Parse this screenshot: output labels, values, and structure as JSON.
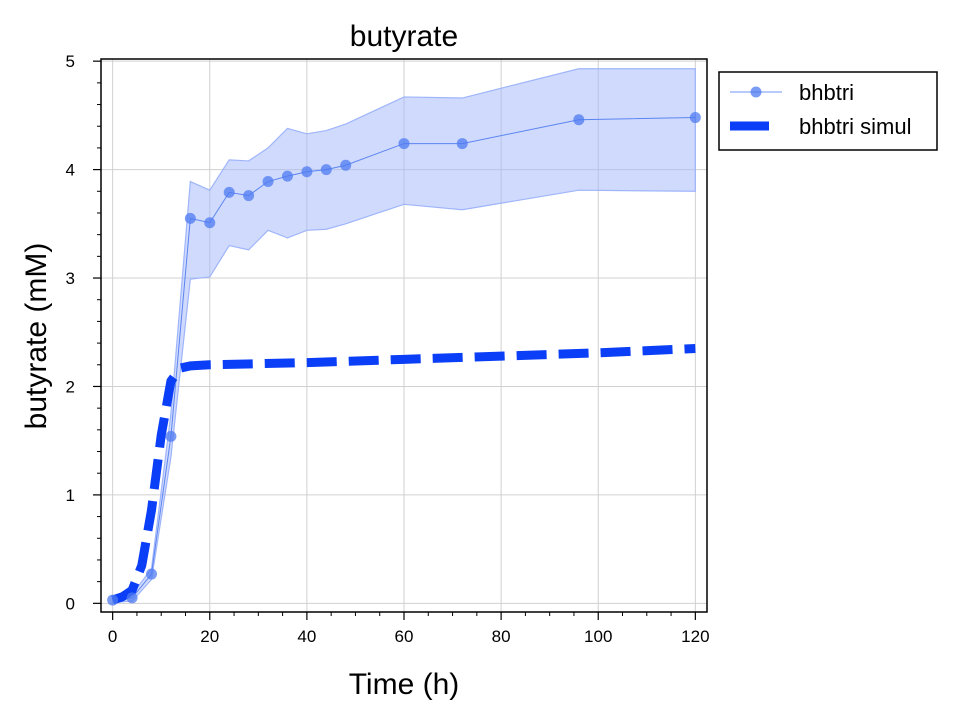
{
  "chart_data": {
    "type": "line",
    "title": "butyrate",
    "xlabel": "Time (h)",
    "ylabel": "butyrate (mM)",
    "xlim": [
      -2.4,
      122.4
    ],
    "ylim": [
      -0.08,
      5.02
    ],
    "xticks": [
      0,
      20,
      40,
      60,
      80,
      100,
      120
    ],
    "yticks": [
      0,
      1,
      2,
      3,
      4,
      5
    ],
    "grid": true,
    "legend_position": "outside-top-right",
    "colors": {
      "observed": "#4f7bf0",
      "band": "#9fb5fb",
      "simulated": "#0a3ef7"
    },
    "series": [
      {
        "name": "bhbtri",
        "style": "line-marker",
        "x": [
          0,
          4,
          8,
          12,
          16,
          20,
          24,
          28,
          32,
          36,
          40,
          44,
          48,
          60,
          72,
          96,
          120
        ],
        "y": [
          0.03,
          0.05,
          0.27,
          1.54,
          3.55,
          3.51,
          3.79,
          3.76,
          3.89,
          3.94,
          3.98,
          4.0,
          4.04,
          4.24,
          4.24,
          4.46,
          4.48
        ],
        "upper": [
          0.05,
          0.08,
          0.32,
          1.75,
          3.89,
          3.81,
          4.09,
          4.08,
          4.2,
          4.38,
          4.33,
          4.36,
          4.42,
          4.67,
          4.66,
          4.93,
          4.93
        ],
        "lower": [
          0.01,
          0.02,
          0.22,
          1.35,
          2.99,
          3.01,
          3.3,
          3.26,
          3.44,
          3.37,
          3.44,
          3.45,
          3.5,
          3.68,
          3.63,
          3.81,
          3.8
        ]
      },
      {
        "name": "bhbtri simul",
        "style": "dashed",
        "x": [
          0,
          2,
          4,
          6,
          8,
          10,
          12,
          14,
          16,
          20,
          30,
          40,
          60,
          80,
          100,
          120
        ],
        "y": [
          0.03,
          0.06,
          0.12,
          0.35,
          0.86,
          1.55,
          2.05,
          2.17,
          2.19,
          2.2,
          2.21,
          2.22,
          2.25,
          2.28,
          2.31,
          2.35
        ]
      }
    ]
  }
}
